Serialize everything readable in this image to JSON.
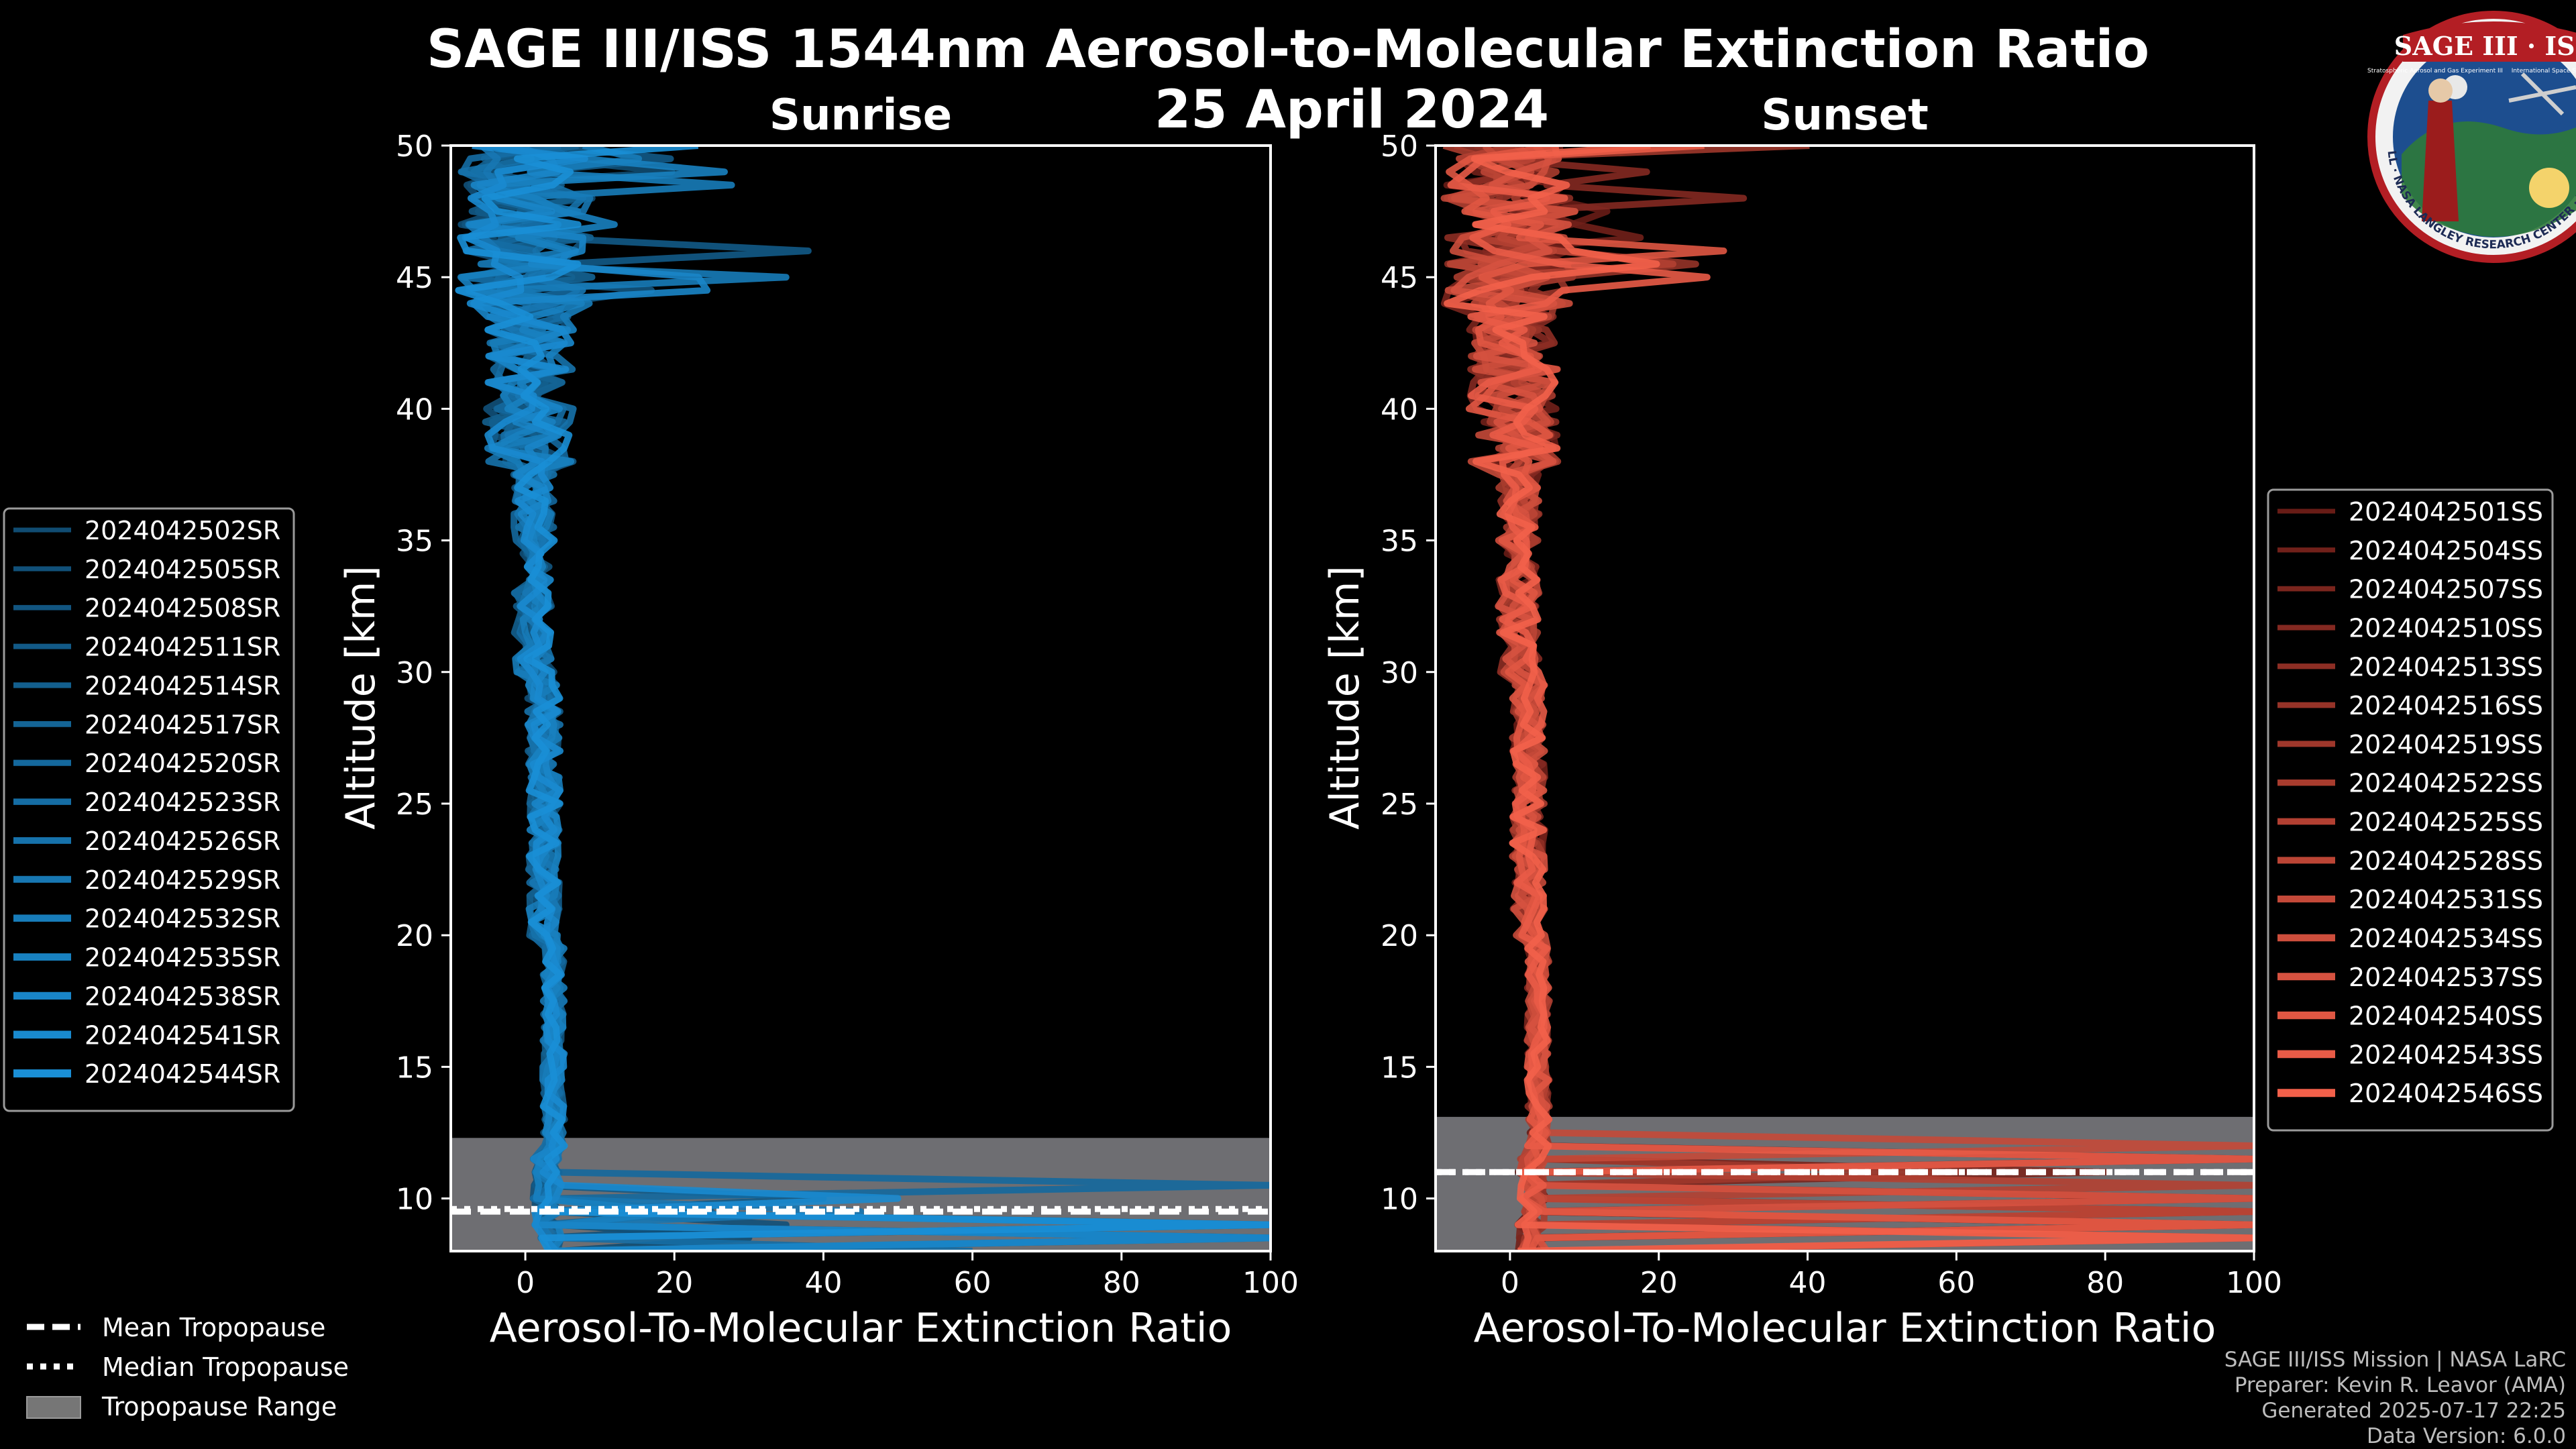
{
  "title": "SAGE III/ISS 1544nm Aerosol-to-Molecular Extinction Ratio",
  "date": "25 April 2024",
  "logo": {
    "text": "SAGE III · ISS",
    "subtitle_left": "Stratospheric Aerosol and Gas Experiment III",
    "subtitle_right": "International Space Station",
    "ring_text": "BALL · NASA LANGLEY RESEARCH CENTER · TAS-I · ESA"
  },
  "footer": [
    "SAGE III/ISS Mission | NASA LaRC",
    "Preparer: Kevin R. Leavor (AMA)",
    "Generated 2025-07-17 22:25",
    "Data Version: 6.0.0"
  ],
  "tropopause_legend": {
    "mean": "Mean Tropopause",
    "median": "Median Tropopause",
    "range": "Tropopause Range"
  },
  "chart_data": [
    {
      "type": "line",
      "panel": "Sunrise",
      "title": "Sunrise",
      "xlabel": "Aerosol-To-Molecular Extinction Ratio",
      "ylabel": "Altitude [km]",
      "xlim": [
        -10,
        100
      ],
      "ylim": [
        8,
        50
      ],
      "xticks": [
        0,
        20,
        40,
        60,
        80,
        100
      ],
      "yticks": [
        10,
        15,
        20,
        25,
        30,
        35,
        40,
        45,
        50
      ],
      "tropopause": {
        "mean": 9.5,
        "median": 9.6,
        "range": [
          8.0,
          12.3
        ]
      },
      "legend_location": "left",
      "colors": {
        "base": "#1a8fd6",
        "dark": "#0d3550"
      },
      "series": [
        {
          "name": "2024042502SR",
          "seed": 11,
          "spike_alt": 8.6,
          "spike_val": 30
        },
        {
          "name": "2024042505SR",
          "seed": 23,
          "spike_alt": 9.1,
          "spike_val": 35
        },
        {
          "name": "2024042508SR",
          "seed": 37,
          "spike_alt": 8.4,
          "spike_val": 100
        },
        {
          "name": "2024042511SR",
          "seed": 41,
          "spike_alt": 9.8,
          "spike_val": 40
        },
        {
          "name": "2024042514SR",
          "seed": 53,
          "spike_alt": 8.9,
          "spike_val": 100
        },
        {
          "name": "2024042517SR",
          "seed": 67,
          "spike_alt": 9.3,
          "spike_val": 25
        },
        {
          "name": "2024042520SR",
          "seed": 71,
          "spike_alt": 10.5,
          "spike_val": 100
        },
        {
          "name": "2024042523SR",
          "seed": 83,
          "spike_alt": 8.2,
          "spike_val": 60
        },
        {
          "name": "2024042526SR",
          "seed": 97,
          "spike_alt": 9.0,
          "spike_val": 100
        },
        {
          "name": "2024042529SR",
          "seed": 101,
          "spike_alt": 9.6,
          "spike_val": 45
        },
        {
          "name": "2024042532SR",
          "seed": 113,
          "spike_alt": 8.7,
          "spike_val": 100
        },
        {
          "name": "2024042535SR",
          "seed": 127,
          "spike_alt": 9.4,
          "spike_val": 20
        },
        {
          "name": "2024042538SR",
          "seed": 131,
          "spike_alt": 8.5,
          "spike_val": 100
        },
        {
          "name": "2024042541SR",
          "seed": 149,
          "spike_alt": 9.9,
          "spike_val": 50
        },
        {
          "name": "2024042544SR",
          "seed": 157,
          "spike_alt": 8.8,
          "spike_val": 100
        }
      ]
    },
    {
      "type": "line",
      "panel": "Sunset",
      "title": "Sunset",
      "xlabel": "Aerosol-To-Molecular Extinction Ratio",
      "ylabel": "Altitude [km]",
      "xlim": [
        -10,
        100
      ],
      "ylim": [
        8,
        50
      ],
      "xticks": [
        0,
        20,
        40,
        60,
        80,
        100
      ],
      "yticks": [
        10,
        15,
        20,
        25,
        30,
        35,
        40,
        45,
        50
      ],
      "tropopause": {
        "mean": 11.0,
        "median": 11.0,
        "range": [
          8.0,
          13.1
        ]
      },
      "legend_location": "right",
      "colors": {
        "base": "#f2604a",
        "dark": "#3a0505"
      },
      "series": [
        {
          "name": "2024042501SS",
          "seed": 13,
          "spike_alt": 11.5,
          "spike_val": 100
        },
        {
          "name": "2024042504SS",
          "seed": 29,
          "spike_alt": 9.2,
          "spike_val": 100
        },
        {
          "name": "2024042507SS",
          "seed": 31,
          "spike_alt": 10.8,
          "spike_val": 80
        },
        {
          "name": "2024042510SS",
          "seed": 43,
          "spike_alt": 8.9,
          "spike_val": 100
        },
        {
          "name": "2024042513SS",
          "seed": 59,
          "spike_alt": 10.1,
          "spike_val": 100
        },
        {
          "name": "2024042516SS",
          "seed": 61,
          "spike_alt": 9.5,
          "spike_val": 100
        },
        {
          "name": "2024042519SS",
          "seed": 73,
          "spike_alt": 11.2,
          "spike_val": 60
        },
        {
          "name": "2024042522SS",
          "seed": 79,
          "spike_alt": 8.6,
          "spike_val": 100
        },
        {
          "name": "2024042525SS",
          "seed": 89,
          "spike_alt": 10.4,
          "spike_val": 100
        },
        {
          "name": "2024042528SS",
          "seed": 103,
          "spike_alt": 9.7,
          "spike_val": 100
        },
        {
          "name": "2024042531SS",
          "seed": 107,
          "spike_alt": 11.8,
          "spike_val": 100
        },
        {
          "name": "2024042534SS",
          "seed": 109,
          "spike_alt": 9.0,
          "spike_val": 100
        },
        {
          "name": "2024042537SS",
          "seed": 137,
          "spike_alt": 10.0,
          "spike_val": 100
        },
        {
          "name": "2024042540SS",
          "seed": 139,
          "spike_alt": 8.8,
          "spike_val": 100
        },
        {
          "name": "2024042543SS",
          "seed": 151,
          "spike_alt": 11.4,
          "spike_val": 100
        },
        {
          "name": "2024042546SS",
          "seed": 163,
          "spike_alt": 8.4,
          "spike_val": 100
        }
      ]
    }
  ]
}
